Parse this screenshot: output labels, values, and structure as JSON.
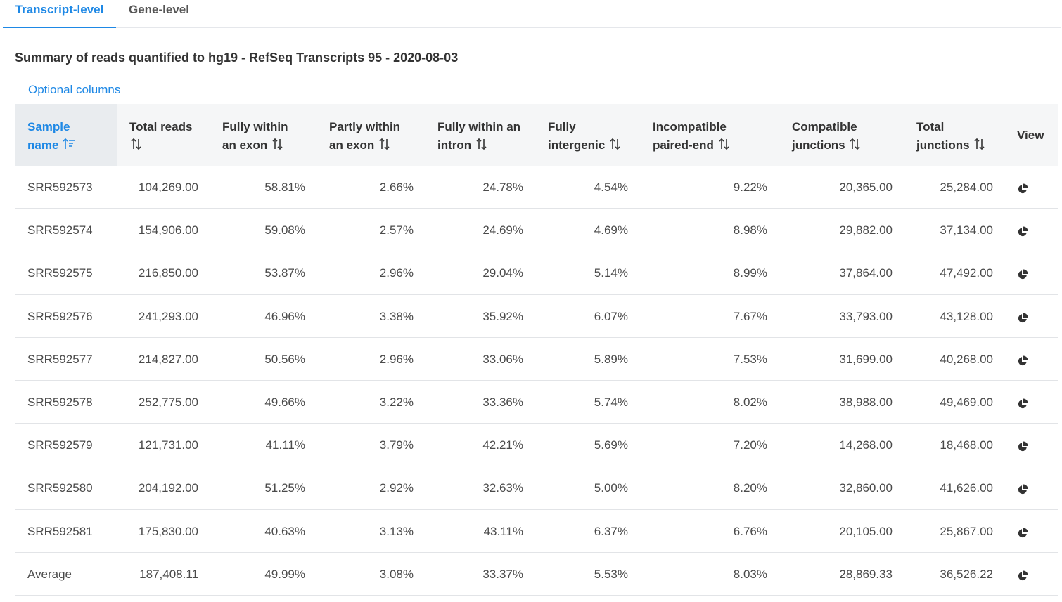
{
  "tabs": [
    {
      "label": "Transcript-level",
      "active": true
    },
    {
      "label": "Gene-level",
      "active": false
    }
  ],
  "title": "Summary of reads quantified to hg19 - RefSeq Transcripts 95 - 2020-08-03",
  "optional_columns_label": "Optional columns",
  "colors": {
    "accent": "#1e88e5",
    "header_bg": "#f5f6f7",
    "sorted_header_bg": "#e9ecef",
    "text": "#4a4a4a"
  },
  "table": {
    "columns": [
      {
        "line1": "Sample",
        "line2": "name",
        "sort": "sorted-asc-icon"
      },
      {
        "line1": "Total reads",
        "line2": "",
        "sort": "sort-icon"
      },
      {
        "line1": "Fully within",
        "line2": "an exon",
        "sort": "sort-icon"
      },
      {
        "line1": "Partly within",
        "line2": "an exon",
        "sort": "sort-icon"
      },
      {
        "line1": "Fully within an",
        "line2": "intron",
        "sort": "sort-icon"
      },
      {
        "line1": "Fully",
        "line2": "intergenic",
        "sort": "sort-icon"
      },
      {
        "line1": "Incompatible",
        "line2": "paired-end",
        "sort": "sort-icon"
      },
      {
        "line1": "Compatible",
        "line2": "junctions",
        "sort": "sort-icon"
      },
      {
        "line1": "Total",
        "line2": "junctions",
        "sort": "sort-icon"
      },
      {
        "line1": "View",
        "line2": "",
        "sort": ""
      }
    ],
    "view_icon": "pie-chart-icon",
    "rows": [
      [
        "SRR592573",
        "104,269.00",
        "58.81%",
        "2.66%",
        "24.78%",
        "4.54%",
        "9.22%",
        "20,365.00",
        "25,284.00"
      ],
      [
        "SRR592574",
        "154,906.00",
        "59.08%",
        "2.57%",
        "24.69%",
        "4.69%",
        "8.98%",
        "29,882.00",
        "37,134.00"
      ],
      [
        "SRR592575",
        "216,850.00",
        "53.87%",
        "2.96%",
        "29.04%",
        "5.14%",
        "8.99%",
        "37,864.00",
        "47,492.00"
      ],
      [
        "SRR592576",
        "241,293.00",
        "46.96%",
        "3.38%",
        "35.92%",
        "6.07%",
        "7.67%",
        "33,793.00",
        "43,128.00"
      ],
      [
        "SRR592577",
        "214,827.00",
        "50.56%",
        "2.96%",
        "33.06%",
        "5.89%",
        "7.53%",
        "31,699.00",
        "40,268.00"
      ],
      [
        "SRR592578",
        "252,775.00",
        "49.66%",
        "3.22%",
        "33.36%",
        "5.74%",
        "8.02%",
        "38,988.00",
        "49,469.00"
      ],
      [
        "SRR592579",
        "121,731.00",
        "41.11%",
        "3.79%",
        "42.21%",
        "5.69%",
        "7.20%",
        "14,268.00",
        "18,468.00"
      ],
      [
        "SRR592580",
        "204,192.00",
        "51.25%",
        "2.92%",
        "32.63%",
        "5.00%",
        "8.20%",
        "32,860.00",
        "41,626.00"
      ],
      [
        "SRR592581",
        "175,830.00",
        "40.63%",
        "3.13%",
        "43.11%",
        "6.37%",
        "6.76%",
        "20,105.00",
        "25,867.00"
      ],
      [
        "Average",
        "187,408.11",
        "49.99%",
        "3.08%",
        "33.37%",
        "5.53%",
        "8.03%",
        "28,869.33",
        "36,526.22"
      ]
    ]
  }
}
